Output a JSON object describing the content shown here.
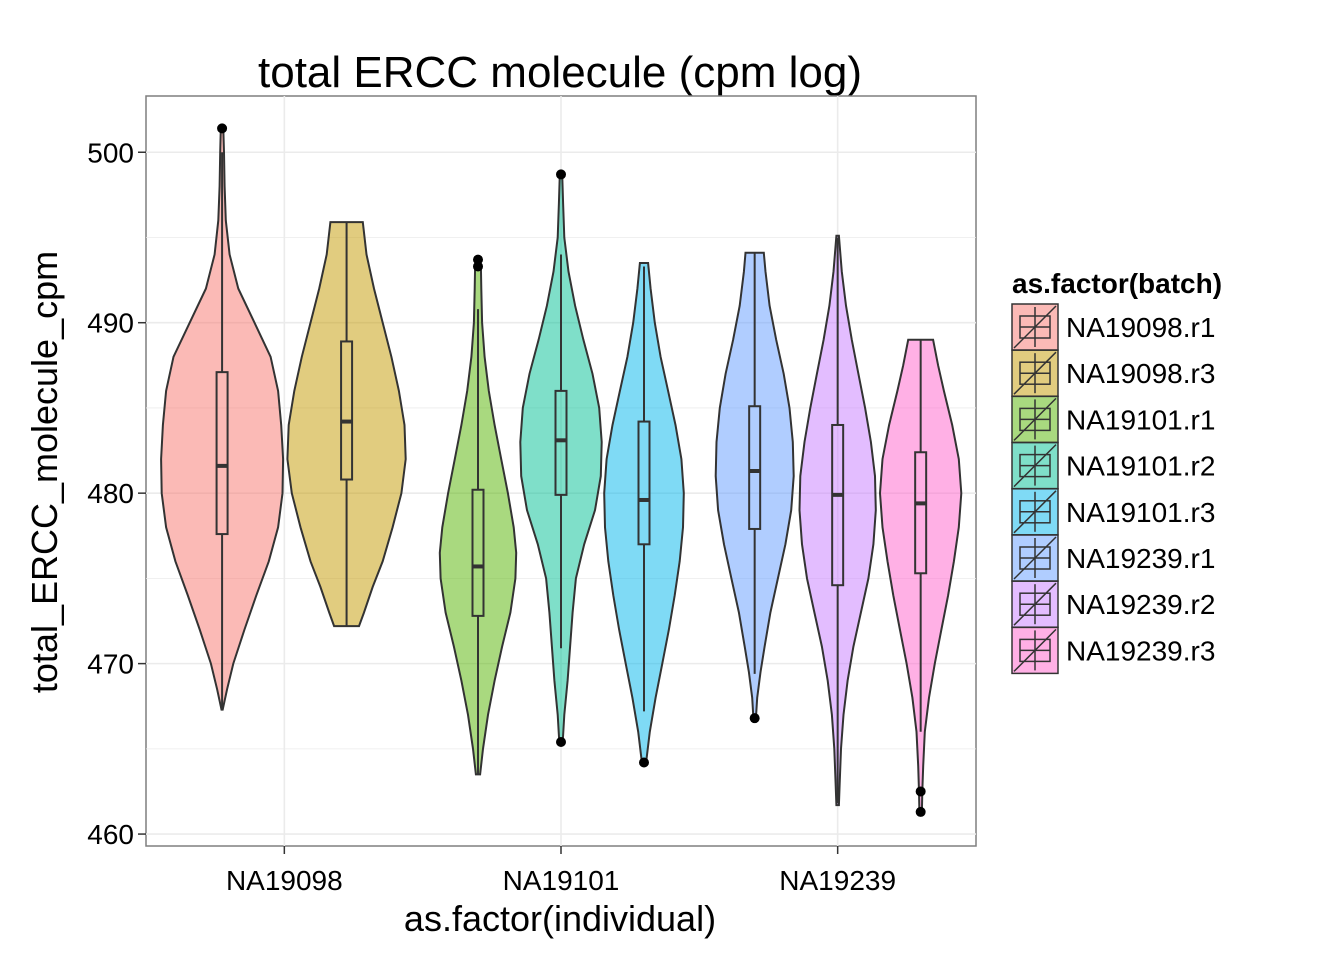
{
  "chart_data": {
    "type": "violin",
    "title": "total ERCC molecule (cpm log)",
    "xlabel": "as.factor(individual)",
    "ylabel": "total_ERCC_molecule_cpm",
    "ylim": [
      459.3,
      503.3
    ],
    "yticks": [
      460,
      470,
      480,
      490,
      500
    ],
    "categories": [
      "NA19098",
      "NA19101",
      "NA19239"
    ],
    "grid": true,
    "legend": {
      "title": "as.factor(batch)",
      "placement": "right"
    },
    "series": [
      {
        "name": "NA19098.r1",
        "category": "NA19098",
        "slot": 0,
        "slots": 2,
        "color": "#F8766D",
        "violin": [
          [
            467.3,
            0.01
          ],
          [
            468.5,
            0.08
          ],
          [
            470,
            0.18
          ],
          [
            472,
            0.36
          ],
          [
            474,
            0.55
          ],
          [
            476,
            0.75
          ],
          [
            478,
            0.9
          ],
          [
            480,
            0.97
          ],
          [
            482,
            0.98
          ],
          [
            484,
            0.95
          ],
          [
            486,
            0.9
          ],
          [
            488,
            0.78
          ],
          [
            490,
            0.52
          ],
          [
            492,
            0.26
          ],
          [
            494,
            0.12
          ],
          [
            496,
            0.06
          ],
          [
            498,
            0.04
          ],
          [
            500,
            0.03
          ],
          [
            501.4,
            0.02
          ]
        ],
        "box": {
          "lower_whisker": 467.3,
          "q1": 477.6,
          "median": 481.6,
          "q3": 487.1,
          "upper_whisker": 500.0
        },
        "outliers": [
          501.4
        ]
      },
      {
        "name": "NA19098.r3",
        "category": "NA19098",
        "slot": 1,
        "slots": 2,
        "color": "#C49A00",
        "violin": [
          [
            472.2,
            0.2
          ],
          [
            473,
            0.28
          ],
          [
            474.5,
            0.42
          ],
          [
            476,
            0.58
          ],
          [
            478,
            0.74
          ],
          [
            480,
            0.88
          ],
          [
            482,
            0.95
          ],
          [
            484,
            0.93
          ],
          [
            486,
            0.84
          ],
          [
            488,
            0.72
          ],
          [
            490,
            0.58
          ],
          [
            492,
            0.44
          ],
          [
            494,
            0.32
          ],
          [
            495.9,
            0.26
          ]
        ],
        "box": {
          "lower_whisker": 472.2,
          "q1": 480.8,
          "median": 484.2,
          "q3": 488.9,
          "upper_whisker": 495.9
        },
        "outliers": []
      },
      {
        "name": "NA19101.r1",
        "category": "NA19101",
        "slot": 0,
        "slots": 3,
        "color": "#53B400",
        "violin": [
          [
            463.5,
            0.05
          ],
          [
            465,
            0.12
          ],
          [
            467,
            0.24
          ],
          [
            469,
            0.4
          ],
          [
            471,
            0.58
          ],
          [
            473,
            0.78
          ],
          [
            475,
            0.9
          ],
          [
            476.5,
            0.92
          ],
          [
            478,
            0.86
          ],
          [
            480,
            0.72
          ],
          [
            482,
            0.56
          ],
          [
            484,
            0.4
          ],
          [
            486,
            0.26
          ],
          [
            488,
            0.16
          ],
          [
            490,
            0.1
          ],
          [
            492,
            0.08
          ],
          [
            493.3,
            0.07
          ]
        ],
        "box": {
          "lower_whisker": 463.5,
          "q1": 472.8,
          "median": 475.7,
          "q3": 480.2,
          "upper_whisker": 490.8
        },
        "outliers": [
          493.3,
          493.7
        ]
      },
      {
        "name": "NA19101.r2",
        "category": "NA19101",
        "slot": 1,
        "slots": 3,
        "color": "#00C094",
        "violin": [
          [
            465.4,
            0.04
          ],
          [
            467,
            0.08
          ],
          [
            469,
            0.16
          ],
          [
            471,
            0.22
          ],
          [
            473,
            0.28
          ],
          [
            475,
            0.36
          ],
          [
            477,
            0.56
          ],
          [
            479,
            0.82
          ],
          [
            481,
            0.96
          ],
          [
            483,
            0.98
          ],
          [
            485,
            0.92
          ],
          [
            487,
            0.76
          ],
          [
            489,
            0.54
          ],
          [
            491,
            0.34
          ],
          [
            493,
            0.18
          ],
          [
            495,
            0.08
          ],
          [
            497,
            0.05
          ],
          [
            498.7,
            0.03
          ]
        ],
        "box": {
          "lower_whisker": 470.9,
          "q1": 479.9,
          "median": 483.1,
          "q3": 486.0,
          "upper_whisker": 494.0
        },
        "outliers": [
          465.4,
          498.7
        ]
      },
      {
        "name": "NA19101.r3",
        "category": "NA19101",
        "slot": 2,
        "slots": 3,
        "color": "#00B6EB",
        "violin": [
          [
            464.2,
            0.05
          ],
          [
            466,
            0.14
          ],
          [
            468,
            0.28
          ],
          [
            470,
            0.44
          ],
          [
            472,
            0.6
          ],
          [
            474,
            0.74
          ],
          [
            476,
            0.86
          ],
          [
            478,
            0.94
          ],
          [
            480,
            0.96
          ],
          [
            482,
            0.9
          ],
          [
            484,
            0.76
          ],
          [
            486,
            0.58
          ],
          [
            488,
            0.4
          ],
          [
            490,
            0.26
          ],
          [
            492,
            0.16
          ],
          [
            493.5,
            0.1
          ]
        ],
        "box": {
          "lower_whisker": 467.2,
          "q1": 477.0,
          "median": 479.6,
          "q3": 484.2,
          "upper_whisker": 493.3
        },
        "outliers": [
          464.2
        ]
      },
      {
        "name": "NA19239.r1",
        "category": "NA19239",
        "slot": 0,
        "slots": 3,
        "color": "#619CFF",
        "violin": [
          [
            466.8,
            0.03
          ],
          [
            468,
            0.06
          ],
          [
            469.5,
            0.14
          ],
          [
            471,
            0.24
          ],
          [
            473,
            0.38
          ],
          [
            475,
            0.56
          ],
          [
            477,
            0.74
          ],
          [
            479,
            0.88
          ],
          [
            481,
            0.94
          ],
          [
            483,
            0.92
          ],
          [
            485,
            0.84
          ],
          [
            487,
            0.7
          ],
          [
            489,
            0.52
          ],
          [
            491,
            0.36
          ],
          [
            493,
            0.26
          ],
          [
            494.1,
            0.22
          ]
        ],
        "box": {
          "lower_whisker": 469.4,
          "q1": 477.9,
          "median": 481.3,
          "q3": 485.1,
          "upper_whisker": 494.1
        },
        "outliers": [
          466.8
        ]
      },
      {
        "name": "NA19239.r2",
        "category": "NA19239",
        "slot": 1,
        "slots": 3,
        "color": "#C77CFF",
        "violin": [
          [
            461.7,
            0.03
          ],
          [
            463,
            0.05
          ],
          [
            465,
            0.08
          ],
          [
            467,
            0.14
          ],
          [
            469,
            0.24
          ],
          [
            471,
            0.38
          ],
          [
            473,
            0.56
          ],
          [
            475,
            0.74
          ],
          [
            477,
            0.86
          ],
          [
            479,
            0.92
          ],
          [
            481,
            0.9
          ],
          [
            483,
            0.8
          ],
          [
            485,
            0.66
          ],
          [
            487,
            0.5
          ],
          [
            489,
            0.34
          ],
          [
            491,
            0.2
          ],
          [
            493,
            0.1
          ],
          [
            495.1,
            0.03
          ]
        ],
        "box": {
          "lower_whisker": 461.8,
          "q1": 474.6,
          "median": 479.9,
          "q3": 484.0,
          "upper_whisker": 495.0
        },
        "outliers": []
      },
      {
        "name": "NA19239.r3",
        "category": "NA19239",
        "slot": 2,
        "slots": 3,
        "color": "#FF61CC",
        "violin": [
          [
            461.3,
            0.03
          ],
          [
            462.5,
            0.04
          ],
          [
            464,
            0.06
          ],
          [
            466,
            0.1
          ],
          [
            468,
            0.2
          ],
          [
            470,
            0.34
          ],
          [
            472,
            0.5
          ],
          [
            474,
            0.66
          ],
          [
            476,
            0.8
          ],
          [
            478,
            0.92
          ],
          [
            480,
            0.98
          ],
          [
            482,
            0.92
          ],
          [
            484,
            0.76
          ],
          [
            486,
            0.56
          ],
          [
            487.5,
            0.42
          ],
          [
            489,
            0.3
          ]
        ],
        "box": {
          "lower_whisker": 466.0,
          "q1": 475.3,
          "median": 479.4,
          "q3": 482.4,
          "upper_whisker": 489.0
        },
        "outliers": [
          461.3,
          462.5
        ]
      }
    ]
  }
}
